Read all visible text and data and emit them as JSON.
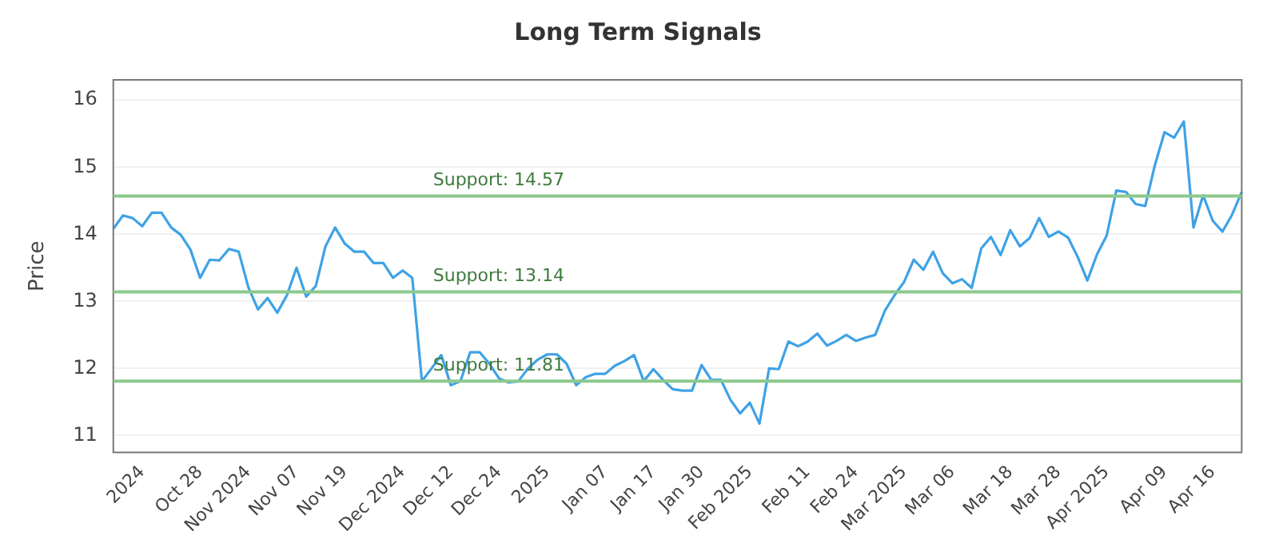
{
  "chart_data": {
    "type": "line",
    "title": "Long Term Signals",
    "ylabel": "Price",
    "categories": [
      null,
      null,
      null,
      "2024",
      null,
      null,
      null,
      null,
      null,
      "Oct 28",
      null,
      null,
      null,
      null,
      "Nov 2024",
      null,
      null,
      null,
      null,
      "Nov 07",
      null,
      null,
      null,
      null,
      "Nov 19",
      null,
      null,
      null,
      null,
      null,
      "Dec 2024",
      null,
      null,
      null,
      null,
      "Dec 12",
      null,
      null,
      null,
      null,
      "Dec 24",
      null,
      null,
      null,
      null,
      "2025",
      null,
      null,
      null,
      null,
      null,
      "Jan 07",
      null,
      null,
      null,
      null,
      "Jan 17",
      null,
      null,
      null,
      null,
      "Jan 30",
      null,
      null,
      null,
      null,
      "Feb 2025",
      null,
      null,
      null,
      null,
      null,
      "Feb 11",
      null,
      null,
      null,
      null,
      "Feb 24",
      null,
      null,
      null,
      null,
      "Mar 2025",
      null,
      null,
      null,
      null,
      "Mar 06",
      null,
      null,
      null,
      null,
      null,
      "Mar 18",
      null,
      null,
      null,
      null,
      "Mar 28",
      null,
      null,
      null,
      null,
      "Apr 2025",
      null,
      null,
      null,
      null,
      null,
      "Apr 09",
      null,
      null,
      null,
      null,
      "Apr 16",
      null,
      null,
      null
    ],
    "series": [
      {
        "color": "#3ea2e6",
        "values": [
          14.08,
          14.28,
          14.24,
          14.12,
          14.32,
          14.32,
          14.1,
          13.99,
          13.77,
          13.35,
          13.62,
          13.61,
          13.78,
          13.74,
          13.21,
          12.88,
          13.05,
          12.83,
          13.09,
          13.5,
          13.07,
          13.23,
          13.82,
          14.1,
          13.86,
          13.74,
          13.74,
          13.57,
          13.57,
          13.35,
          13.46,
          13.35,
          11.81,
          12.0,
          12.2,
          11.75,
          11.81,
          12.24,
          12.24,
          12.07,
          11.85,
          11.79,
          11.81,
          12.0,
          12.13,
          12.21,
          12.21,
          12.07,
          11.75,
          11.87,
          11.92,
          11.92,
          12.04,
          12.11,
          12.2,
          11.81,
          11.99,
          11.83,
          11.69,
          11.67,
          11.67,
          12.05,
          11.83,
          11.83,
          11.53,
          11.33,
          11.49,
          11.18,
          12.0,
          11.99,
          12.4,
          12.33,
          12.4,
          12.52,
          12.34,
          12.41,
          12.5,
          12.41,
          12.46,
          12.5,
          12.86,
          13.09,
          13.29,
          13.62,
          13.47,
          13.74,
          13.42,
          13.27,
          13.33,
          13.2,
          13.79,
          13.96,
          13.69,
          14.06,
          13.82,
          13.94,
          14.24,
          13.96,
          14.04,
          13.95,
          13.66,
          13.31,
          13.7,
          13.98,
          14.65,
          14.63,
          14.45,
          14.42,
          15.03,
          15.52,
          15.44,
          15.68,
          14.1,
          14.58,
          14.2,
          14.04,
          14.29,
          14.63
        ]
      }
    ],
    "ylim": [
      10.75,
      16.3
    ],
    "yticks": [
      11,
      12,
      13,
      14,
      15,
      16
    ],
    "grid": "y",
    "legend": false,
    "marker": "none",
    "line_style": "solid",
    "ref_lines": [
      {
        "axis": "y",
        "value": 14.57,
        "label": "Support: 14.57",
        "color": "#8cc98c"
      },
      {
        "axis": "y",
        "value": 13.14,
        "label": "Support: 13.14",
        "color": "#8cc98c"
      },
      {
        "axis": "y",
        "value": 11.81,
        "label": "Support: 11.81",
        "color": "#8cc98c"
      }
    ]
  }
}
